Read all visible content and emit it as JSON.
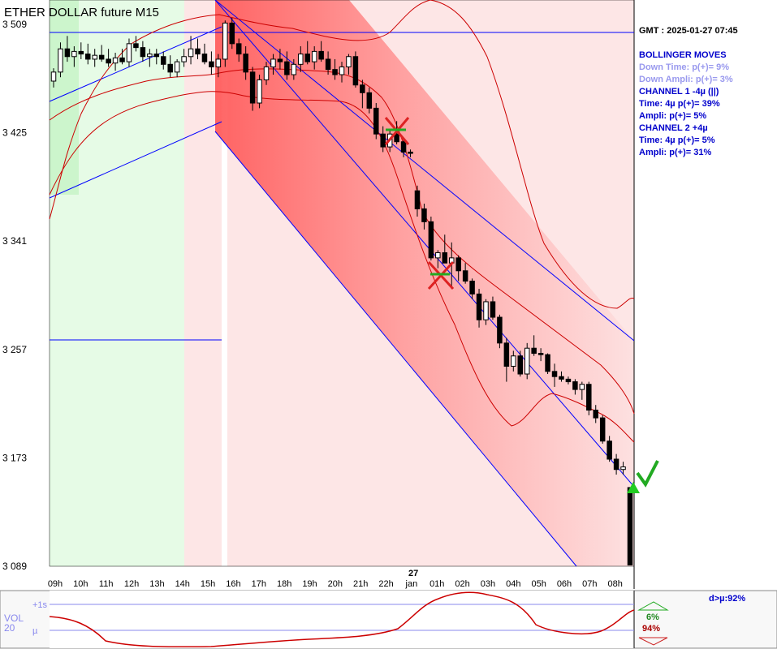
{
  "chart_data": {
    "type": "candlestick",
    "title": "ETHER DOLLAR future M15",
    "y_ticks": [
      "3 509",
      "3 425",
      "3 341",
      "3 257",
      "3 173",
      "3 089"
    ],
    "y_tick_values": [
      3509,
      3425,
      3341,
      3257,
      3173,
      3089
    ],
    "ylim": [
      3089,
      3509
    ],
    "x_ticks": [
      "09h",
      "10h",
      "11h",
      "12h",
      "13h",
      "14h",
      "15h",
      "16h",
      "17h",
      "18h",
      "19h",
      "20h",
      "21h",
      "22h",
      "jan",
      "01h",
      "02h",
      "03h",
      "04h",
      "05h",
      "06h",
      "07h",
      "08h"
    ],
    "date_label": "27",
    "info_panel": {
      "gmt": "GMT : 2025-01-27 07:45",
      "bollinger_title": "BOLLINGER MOVES",
      "down_time": "Down Time: p(+)= 9%",
      "down_ampli": "Down Ampli: p(+)= 3%",
      "channel1": "CHANNEL 1 -4µ (||)",
      "ch1_time": "Time: 4µ p(+)=  39%",
      "ch1_ampli": "Ampli:  p(+)=   5%",
      "channel2": "CHANNEL 2 +4µ",
      "ch2_time": "Time: 4µ p(+)=   5%",
      "ch2_ampli": "Ampli:  p(+)=  31%"
    },
    "candles": [
      [
        3465,
        3475,
        3460,
        3472
      ],
      [
        3472,
        3495,
        3468,
        3490
      ],
      [
        3490,
        3500,
        3480,
        3484
      ],
      [
        3484,
        3492,
        3476,
        3488
      ],
      [
        3488,
        3495,
        3482,
        3486
      ],
      [
        3486,
        3494,
        3478,
        3482
      ],
      [
        3482,
        3490,
        3476,
        3485
      ],
      [
        3485,
        3493,
        3480,
        3482
      ],
      [
        3482,
        3490,
        3476,
        3479
      ],
      [
        3479,
        3487,
        3473,
        3483
      ],
      [
        3483,
        3490,
        3478,
        3480
      ],
      [
        3480,
        3498,
        3476,
        3494
      ],
      [
        3494,
        3500,
        3488,
        3491
      ],
      [
        3491,
        3496,
        3480,
        3484
      ],
      [
        3484,
        3490,
        3476,
        3486
      ],
      [
        3486,
        3490,
        3478,
        3484
      ],
      [
        3484,
        3488,
        3474,
        3478
      ],
      [
        3478,
        3485,
        3468,
        3472
      ],
      [
        3472,
        3482,
        3468,
        3480
      ],
      [
        3480,
        3490,
        3476,
        3484
      ],
      [
        3484,
        3500,
        3478,
        3490
      ],
      [
        3490,
        3498,
        3482,
        3486
      ],
      [
        3486,
        3494,
        3478,
        3480
      ],
      [
        3480,
        3488,
        3470,
        3476
      ],
      [
        3476,
        3486,
        3468,
        3482
      ],
      [
        3482,
        3512,
        3476,
        3510
      ],
      [
        3510,
        3514,
        3490,
        3494
      ],
      [
        3494,
        3498,
        3480,
        3486
      ],
      [
        3486,
        3492,
        3466,
        3472
      ],
      [
        3472,
        3476,
        3442,
        3448
      ],
      [
        3448,
        3470,
        3444,
        3466
      ],
      [
        3466,
        3480,
        3462,
        3476
      ],
      [
        3476,
        3486,
        3470,
        3482
      ],
      [
        3482,
        3490,
        3474,
        3480
      ],
      [
        3480,
        3488,
        3466,
        3470
      ],
      [
        3470,
        3482,
        3466,
        3478
      ],
      [
        3478,
        3492,
        3472,
        3486
      ],
      [
        3486,
        3496,
        3478,
        3480
      ],
      [
        3480,
        3492,
        3474,
        3488
      ],
      [
        3488,
        3496,
        3480,
        3482
      ],
      [
        3482,
        3488,
        3470,
        3474
      ],
      [
        3474,
        3482,
        3466,
        3470
      ],
      [
        3470,
        3480,
        3464,
        3476
      ],
      [
        3476,
        3486,
        3470,
        3484
      ],
      [
        3484,
        3488,
        3460,
        3462
      ],
      [
        3462,
        3466,
        3444,
        3456
      ],
      [
        3456,
        3460,
        3440,
        3444
      ],
      [
        3444,
        3448,
        3420,
        3424
      ],
      [
        3424,
        3430,
        3410,
        3414
      ],
      [
        3414,
        3428,
        3410,
        3424
      ],
      [
        3424,
        3434,
        3416,
        3418
      ],
      [
        3418,
        3420,
        3406,
        3410
      ],
      [
        3410,
        3412,
        3406,
        3409
      ],
      [
        3380,
        3384,
        3360,
        3366
      ],
      [
        3366,
        3370,
        3350,
        3356
      ],
      [
        3356,
        3360,
        3326,
        3328
      ],
      [
        3328,
        3334,
        3320,
        3332
      ],
      [
        3332,
        3346,
        3326,
        3324
      ],
      [
        3324,
        3340,
        3304,
        3328
      ],
      [
        3328,
        3330,
        3310,
        3318
      ],
      [
        3318,
        3324,
        3308,
        3310
      ],
      [
        3310,
        3312,
        3296,
        3300
      ],
      [
        3300,
        3304,
        3274,
        3280
      ],
      [
        3280,
        3296,
        3276,
        3294
      ],
      [
        3294,
        3298,
        3280,
        3282
      ],
      [
        3282,
        3284,
        3258,
        3262
      ],
      [
        3262,
        3266,
        3232,
        3244
      ],
      [
        3244,
        3256,
        3240,
        3252
      ],
      [
        3252,
        3256,
        3236,
        3238
      ],
      [
        3238,
        3262,
        3234,
        3258
      ],
      [
        3258,
        3268,
        3252,
        3254
      ],
      [
        3254,
        3258,
        3248,
        3253
      ],
      [
        3253,
        3254,
        3238,
        3240
      ],
      [
        3240,
        3246,
        3228,
        3236
      ],
      [
        3236,
        3240,
        3232,
        3234
      ],
      [
        3234,
        3236,
        3230,
        3232
      ],
      [
        3232,
        3234,
        3222,
        3226
      ],
      [
        3226,
        3232,
        3218,
        3230
      ],
      [
        3230,
        3232,
        3206,
        3210
      ],
      [
        3210,
        3214,
        3200,
        3204
      ],
      [
        3204,
        3206,
        3184,
        3186
      ],
      [
        3186,
        3190,
        3170,
        3172
      ],
      [
        3172,
        3176,
        3160,
        3164
      ],
      [
        3164,
        3170,
        3160,
        3166
      ],
      [
        3150,
        3150,
        3090,
        3090
      ]
    ],
    "volume_labels": {
      "top": "+1s",
      "mid": "µ",
      "vol": "VOL",
      "period": "20"
    },
    "prob_label": "d>µ:92%",
    "up_pct": "6%",
    "down_pct": "94%",
    "colors": {
      "up": "#ffffff",
      "down": "#000000",
      "channel": "#0000ff",
      "bollinger": "#cc0000",
      "vol": "#cc0000",
      "green": "#22aa22",
      "info_blue": "#0000cc",
      "info_light": "#9999ee"
    }
  }
}
